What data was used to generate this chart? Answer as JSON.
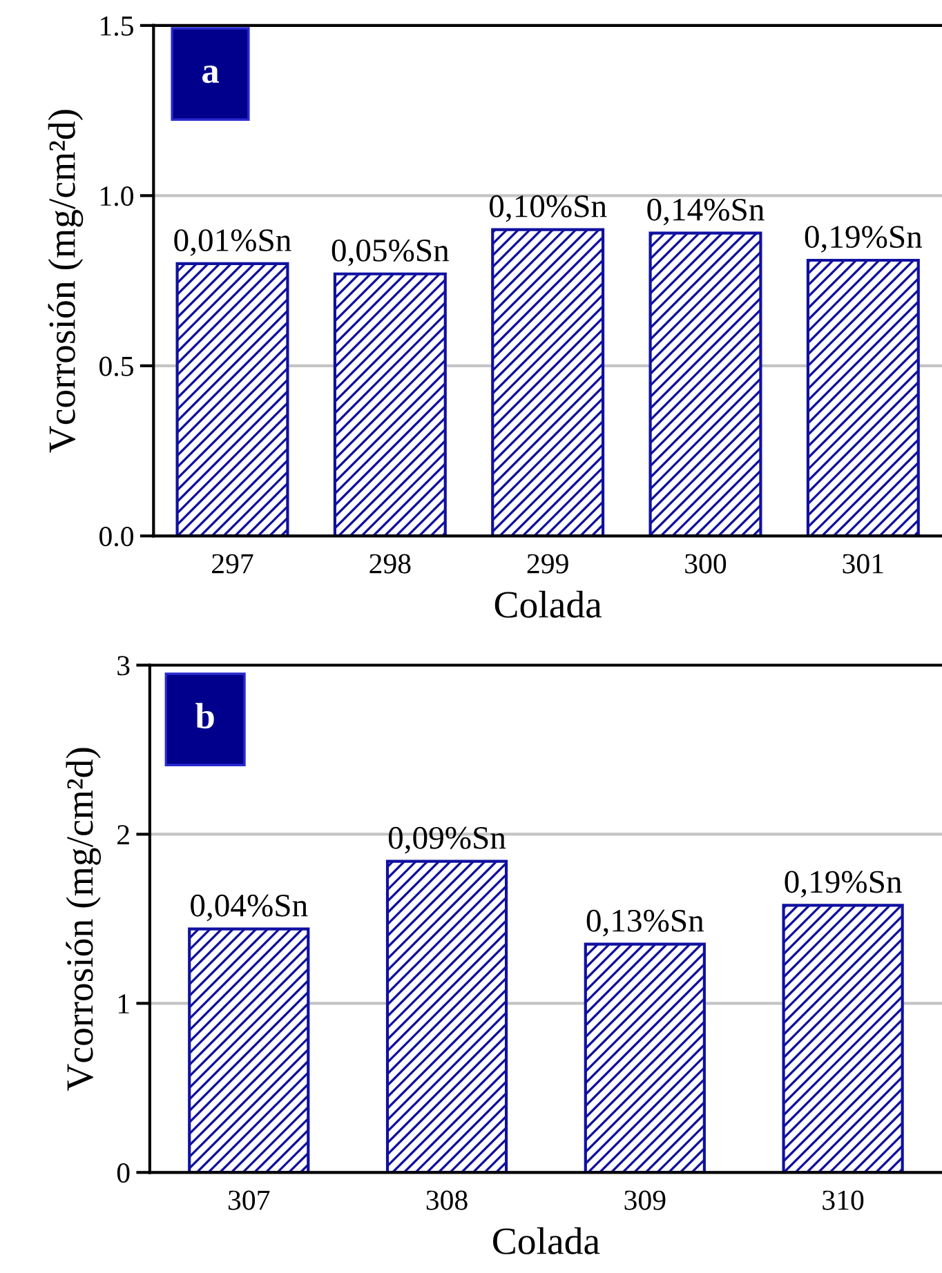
{
  "chart_data": [
    {
      "type": "bar",
      "title": "a",
      "categories": [
        "297",
        "298",
        "299",
        "300",
        "301"
      ],
      "values": [
        0.8,
        0.77,
        0.9,
        0.89,
        0.81
      ],
      "color": "#1010a0",
      "ylim": [
        0,
        1.5
      ],
      "yticks": [
        {
          "value": 0,
          "label": "0.0"
        },
        0.5,
        {
          "value": 1,
          "label": "1.0"
        },
        1.5
      ],
      "grid": "y",
      "xlabel": "Colada",
      "ylabel": "Vcorrosión (mg/cm²d)",
      "annotations": [
        {
          "text": "0,01%Sn",
          "x": "297",
          "y": 0.8
        },
        {
          "text": "0,05%Sn",
          "x": "298",
          "y": 0.77
        },
        {
          "text": "0,10%Sn",
          "x": "299",
          "y": 0.9
        },
        {
          "text": "0,14%Sn",
          "x": "300",
          "y": 0.89
        },
        {
          "text": "0,19%Sn",
          "x": "301",
          "y": 0.81
        }
      ]
    },
    {
      "type": "bar",
      "title": "b",
      "categories": [
        "307",
        "308",
        "309",
        "310"
      ],
      "values": [
        1.44,
        1.84,
        1.35,
        1.58
      ],
      "color": "#1010a0",
      "ylim": [
        0,
        3
      ],
      "yticks": [
        0,
        1,
        2,
        3
      ],
      "grid": "y",
      "xlabel": "Colada",
      "ylabel": "Vcorrosión (mg/cm²d)",
      "annotations": [
        {
          "text": "0,04%Sn",
          "x": "307",
          "y": 1.44
        },
        {
          "text": "0,09%Sn",
          "x": "308",
          "y": 1.84
        },
        {
          "text": "0,13%Sn",
          "x": "309",
          "y": 1.35
        },
        {
          "text": "0,19%Sn",
          "x": "310",
          "y": 1.58
        }
      ]
    }
  ]
}
